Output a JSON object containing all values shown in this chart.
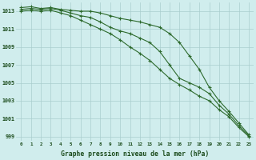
{
  "x": [
    0,
    1,
    2,
    3,
    4,
    5,
    6,
    7,
    8,
    9,
    10,
    11,
    12,
    13,
    14,
    15,
    16,
    17,
    18,
    19,
    20,
    21,
    22,
    23
  ],
  "line1": [
    1013.4,
    1013.5,
    1013.3,
    1013.4,
    1013.2,
    1013.1,
    1013.0,
    1013.0,
    1012.8,
    1012.5,
    1012.2,
    1012.0,
    1011.8,
    1011.5,
    1011.2,
    1010.5,
    1009.5,
    1008.0,
    1006.5,
    1004.5,
    1003.0,
    1001.8,
    1000.5,
    999.2
  ],
  "line2": [
    1013.2,
    1013.3,
    1013.2,
    1013.3,
    1013.1,
    1012.8,
    1012.5,
    1012.3,
    1011.8,
    1011.2,
    1010.8,
    1010.5,
    1010.0,
    1009.5,
    1008.5,
    1007.0,
    1005.5,
    1005.0,
    1004.5,
    1003.8,
    1002.5,
    1001.5,
    1000.2,
    999.1
  ],
  "line3": [
    1013.0,
    1013.1,
    1013.0,
    1013.1,
    1012.8,
    1012.5,
    1012.0,
    1011.5,
    1011.0,
    1010.5,
    1009.8,
    1009.0,
    1008.3,
    1007.5,
    1006.5,
    1005.5,
    1004.8,
    1004.2,
    1003.5,
    1003.0,
    1002.0,
    1001.2,
    1000.0,
    999.0
  ],
  "line_color": "#2d6a2d",
  "bg_color": "#d0eded",
  "grid_color": "#aacece",
  "xlabel": "Graphe pression niveau de la mer (hPa)",
  "xlabel_color": "#1a4a1a",
  "tick_color": "#1a4a1a",
  "ylim": [
    998.5,
    1014.0
  ],
  "yticks": [
    999,
    1001,
    1003,
    1005,
    1007,
    1009,
    1011,
    1013
  ],
  "marker": "+",
  "markersize": 3.5,
  "linewidth": 0.8
}
